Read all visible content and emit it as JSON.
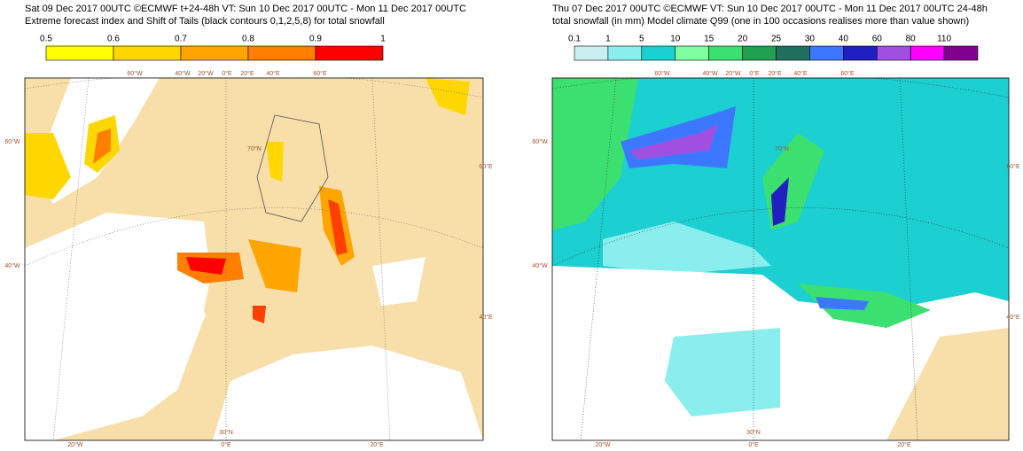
{
  "panels": [
    {
      "title_lines": [
        "Sat 09 Dec 2017 00UTC ©ECMWF t+24-48h  VT: Sun 10 Dec 2017 00UTC - Mon 11 Dec 2017 00UTC",
        "Extreme forecast index and Shift of Tails (black contours 0,1,2,5,8) for total snowfall"
      ],
      "colorbar": {
        "ticks": [
          0.5,
          0.6,
          0.7,
          0.8,
          0.9,
          1
        ],
        "colors": [
          "#ffff00",
          "#ffd700",
          "#ffa500",
          "#ff7f00",
          "#ff0000"
        ]
      },
      "map_labels": [
        "60°W",
        "40°W",
        "20°W",
        "0°E",
        "20°E",
        "40°E",
        "60°E",
        "60°W",
        "40°W",
        "60°E",
        "40°E",
        "70°N",
        "30°N",
        "20°W",
        "0°E",
        "20°E"
      ]
    },
    {
      "title_lines": [
        "Thu 07 Dec 2017 00UTC ©ECMWF VT: Sun 10 Dec 2017 00UTC - Mon 11 Dec 2017 00UTC   24-48h",
        "total snowfall (in mm)  Model climate Q99 (one in 100 occasions realises more than value shown)"
      ],
      "colorbar": {
        "ticks": [
          0.1,
          1,
          5,
          10,
          15,
          20,
          25,
          30,
          40,
          60,
          80,
          110
        ],
        "colors": [
          "#c8f0f0",
          "#8aeeee",
          "#1ccfd0",
          "#80ffa0",
          "#3ce070",
          "#20a050",
          "#207060",
          "#3c78ff",
          "#2020c0",
          "#a050e0",
          "#ff00ff",
          "#800090"
        ]
      },
      "map_labels": [
        "60°W",
        "40°W",
        "20°W",
        "0°E",
        "20°E",
        "40°E",
        "60°E",
        "60°W",
        "40°W",
        "60°E",
        "40°E",
        "70°N",
        "30°N",
        "20°W",
        "0°E",
        "20°E"
      ]
    }
  ]
}
